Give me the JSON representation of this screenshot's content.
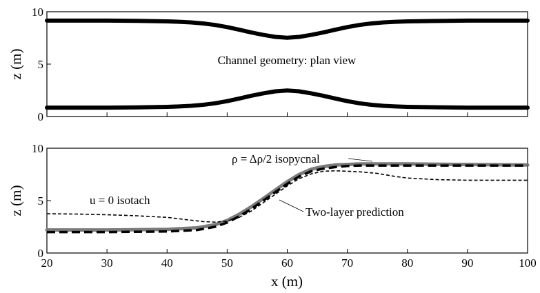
{
  "chart_data": [
    {
      "type": "line",
      "title": "",
      "xlabel": "",
      "ylabel": "z (m)",
      "xlim": [
        20,
        100
      ],
      "ylim": [
        0,
        10
      ],
      "xticks": [],
      "yticks": [
        "0",
        "5",
        "10"
      ],
      "grid": false,
      "annotations": [
        {
          "text": "Channel geometry: plan view",
          "x": 60,
          "y": 5.7
        }
      ],
      "series": [
        {
          "name": "",
          "color": "#000000",
          "style": "solid-thick",
          "x": [
            20,
            25,
            30,
            35,
            40,
            42,
            44,
            46,
            48,
            50,
            52,
            54,
            56,
            58,
            60,
            62,
            64,
            66,
            68,
            70,
            72,
            74,
            76,
            78,
            80,
            85,
            90,
            95,
            100
          ],
          "y": [
            9.15,
            9.15,
            9.15,
            9.13,
            9.08,
            9.04,
            8.98,
            8.88,
            8.74,
            8.53,
            8.28,
            8.02,
            7.79,
            7.6,
            7.52,
            7.6,
            7.79,
            8.02,
            8.28,
            8.53,
            8.74,
            8.88,
            8.98,
            9.04,
            9.08,
            9.12,
            9.15,
            9.15,
            9.15
          ]
        },
        {
          "name": "",
          "color": "#000000",
          "style": "solid-thick",
          "x": [
            20,
            25,
            30,
            35,
            40,
            42,
            44,
            46,
            48,
            50,
            52,
            54,
            56,
            58,
            60,
            62,
            64,
            66,
            68,
            70,
            72,
            74,
            76,
            78,
            80,
            85,
            90,
            95,
            100
          ],
          "y": [
            0.85,
            0.85,
            0.85,
            0.87,
            0.92,
            0.96,
            1.02,
            1.12,
            1.26,
            1.47,
            1.72,
            1.98,
            2.21,
            2.4,
            2.48,
            2.4,
            2.21,
            1.98,
            1.72,
            1.47,
            1.26,
            1.12,
            1.02,
            0.96,
            0.92,
            0.88,
            0.85,
            0.85,
            0.85
          ]
        }
      ]
    },
    {
      "type": "line",
      "title": "",
      "xlabel": "x (m)",
      "ylabel": "z (m)",
      "xlim": [
        20,
        100
      ],
      "ylim": [
        0,
        10
      ],
      "xticks": [
        "20",
        "30",
        "40",
        "50",
        "60",
        "70",
        "80",
        "90",
        "100"
      ],
      "yticks": [
        "0",
        "5",
        "10"
      ],
      "grid": false,
      "annotations": [
        {
          "text": "ρ = Δρ/2 isopycnal",
          "x": 57,
          "y": 9.3
        },
        {
          "text": "u = 0 isotach",
          "x": 27,
          "y": 4.8
        },
        {
          "text": "Two-layer prediction",
          "x": 66,
          "y": 3.8
        }
      ],
      "series": [
        {
          "name": "ρ = Δρ/2 isopycnal",
          "color": "#7a7a7a",
          "style": "solid-thick-gray",
          "x": [
            20,
            30,
            40,
            45,
            48,
            50,
            52,
            54,
            56,
            58,
            60,
            62,
            64,
            66,
            68,
            70,
            72,
            75,
            80,
            90,
            100
          ],
          "y": [
            2.2,
            2.2,
            2.25,
            2.4,
            2.7,
            3.1,
            3.7,
            4.4,
            5.2,
            6.0,
            6.8,
            7.5,
            8.0,
            8.25,
            8.4,
            8.45,
            8.5,
            8.5,
            8.5,
            8.45,
            8.4
          ]
        },
        {
          "name": "Two-layer prediction",
          "color": "#000000",
          "style": "dashed-thick",
          "x": [
            20,
            30,
            40,
            45,
            48,
            50,
            52,
            54,
            56,
            58,
            60,
            62,
            64,
            66,
            68,
            70,
            72,
            75,
            80,
            90,
            100
          ],
          "y": [
            2.0,
            2.0,
            2.05,
            2.2,
            2.5,
            2.9,
            3.5,
            4.2,
            5.0,
            5.8,
            6.6,
            7.3,
            7.8,
            8.05,
            8.2,
            8.3,
            8.35,
            8.35,
            8.35,
            8.35,
            8.35
          ]
        },
        {
          "name": "u = 0 isotach",
          "color": "#000000",
          "style": "dashed-thin",
          "x": [
            20,
            25,
            30,
            35,
            40,
            43,
            46,
            48,
            50,
            52,
            54,
            56,
            58,
            60,
            62,
            64,
            66,
            68,
            70,
            72,
            75,
            78,
            80,
            85,
            90,
            95,
            100
          ],
          "y": [
            3.75,
            3.72,
            3.65,
            3.55,
            3.4,
            3.2,
            3.0,
            2.95,
            3.05,
            3.4,
            4.0,
            4.8,
            5.6,
            6.4,
            7.1,
            7.55,
            7.8,
            7.85,
            7.8,
            7.75,
            7.6,
            7.3,
            7.15,
            7.0,
            6.95,
            6.95,
            6.95
          ]
        }
      ]
    }
  ]
}
